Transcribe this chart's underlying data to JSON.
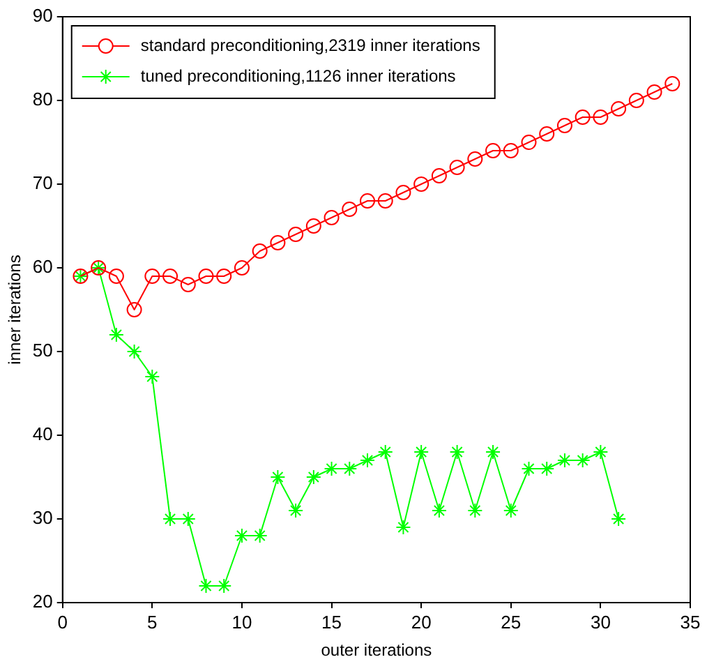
{
  "chart_data": {
    "type": "line",
    "xlabel": "outer iterations",
    "ylabel": "inner iterations",
    "xlim": [
      0,
      35
    ],
    "xticks": [
      0,
      5,
      10,
      15,
      20,
      25,
      30,
      35
    ],
    "ylim": [
      20,
      90
    ],
    "yticks": [
      20,
      30,
      40,
      50,
      60,
      70,
      80,
      90
    ],
    "grid": false,
    "legend": "top left",
    "line_style": "solid",
    "series": [
      {
        "name": "standard preconditioning,2319 inner iterations",
        "color": "#ff0000",
        "marker": "circle",
        "x": [
          1,
          2,
          3,
          4,
          5,
          6,
          7,
          8,
          9,
          10,
          11,
          12,
          13,
          14,
          15,
          16,
          17,
          18,
          19,
          20,
          21,
          22,
          23,
          24,
          25,
          26,
          27,
          28,
          29,
          30,
          31,
          32,
          33,
          34
        ],
        "values": [
          59,
          60,
          59,
          55,
          59,
          59,
          58,
          59,
          59,
          60,
          62,
          63,
          64,
          65,
          66,
          67,
          68,
          68,
          69,
          70,
          71,
          72,
          73,
          74,
          74,
          75,
          76,
          77,
          78,
          78,
          79,
          80,
          81,
          82
        ]
      },
      {
        "name": "tuned preconditioning,1126 inner iterations",
        "color": "#00ff00",
        "marker": "cross",
        "x": [
          1,
          2,
          3,
          4,
          5,
          6,
          7,
          8,
          9,
          10,
          11,
          12,
          13,
          14,
          15,
          16,
          17,
          18,
          19,
          20,
          21,
          22,
          23,
          24,
          25,
          26,
          27,
          28,
          29,
          30,
          31
        ],
        "values": [
          59,
          60,
          52,
          50,
          47,
          30,
          30,
          22,
          22,
          28,
          28,
          35,
          31,
          35,
          36,
          36,
          37,
          38,
          29,
          38,
          31,
          38,
          31,
          38,
          31,
          36,
          36,
          37,
          37,
          38,
          30
        ]
      }
    ]
  }
}
